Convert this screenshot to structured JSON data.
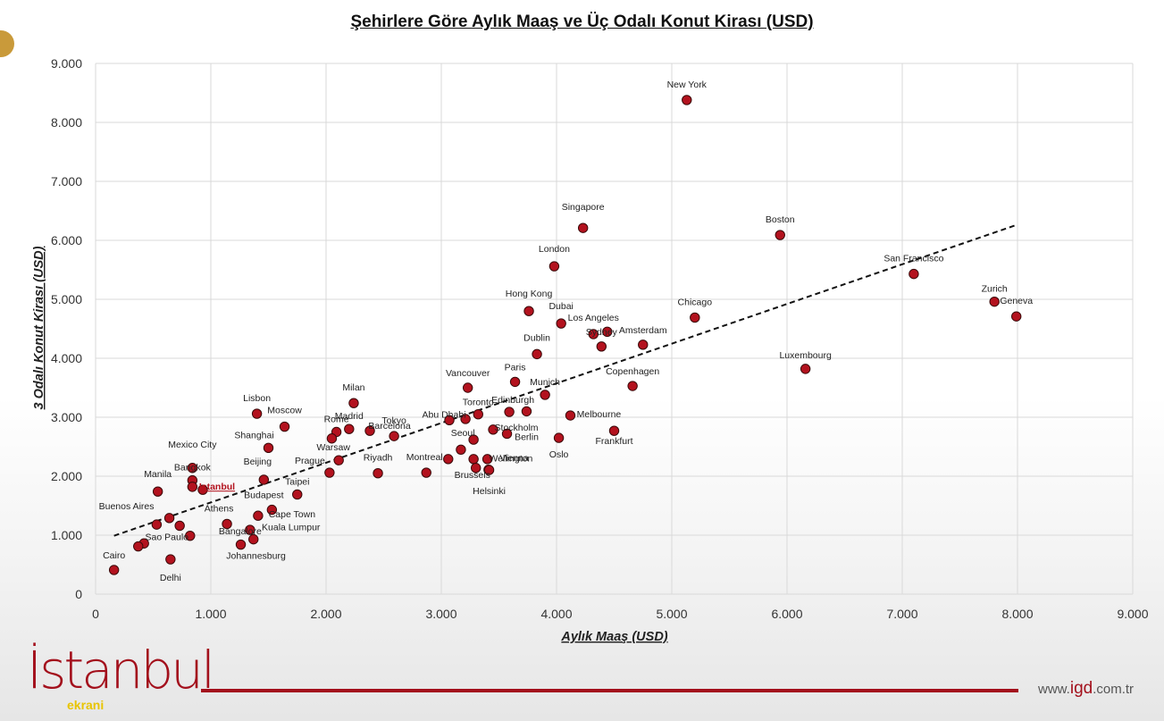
{
  "chart_data": {
    "type": "scatter",
    "title": "Şehirlere Göre Aylık Maaş ve Üç Odalı Konut Kirası (USD)",
    "xlabel": "Aylık Maaş (USD)",
    "ylabel": "3 Odalı Konut Kirası (USD)",
    "xlim": [
      0,
      9000
    ],
    "ylim": [
      0,
      9000
    ],
    "xticks": [
      0,
      1000,
      2000,
      3000,
      4000,
      5000,
      6000,
      7000,
      8000,
      9000
    ],
    "yticks": [
      0,
      1000,
      2000,
      3000,
      4000,
      5000,
      6000,
      7000,
      8000,
      9000
    ],
    "xtick_labels": [
      "0",
      "1.000",
      "2.000",
      "3.000",
      "4.000",
      "5.000",
      "6.000",
      "7.000",
      "8.000",
      "9.000"
    ],
    "ytick_labels": [
      "0",
      "1.000",
      "2.000",
      "3.000",
      "4.000",
      "5.000",
      "6.000",
      "7.000",
      "8.000",
      "9.000"
    ],
    "grid": true,
    "trendline": {
      "style": "dashed",
      "x": [
        160,
        7990
      ],
      "y": [
        990,
        6260
      ]
    },
    "marker_color": "#b3121e",
    "highlight_color": "#b3121e",
    "points": [
      {
        "x": 5130,
        "y": 8380,
        "label": "New York"
      },
      {
        "x": 4230,
        "y": 6210,
        "label": "Singapore"
      },
      {
        "x": 5940,
        "y": 6090,
        "label": "Boston"
      },
      {
        "x": 3980,
        "y": 5560,
        "label": "London"
      },
      {
        "x": 7100,
        "y": 5430,
        "label": "San Francisco"
      },
      {
        "x": 7800,
        "y": 4960,
        "label": "Zurich"
      },
      {
        "x": 7990,
        "y": 4710,
        "label": "Geneva"
      },
      {
        "x": 3760,
        "y": 4800,
        "label": "Hong Kong"
      },
      {
        "x": 5200,
        "y": 4690,
        "label": "Chicago"
      },
      {
        "x": 4040,
        "y": 4590,
        "label": "Dubai"
      },
      {
        "x": 4320,
        "y": 4410,
        "label": "Los Angeles"
      },
      {
        "x": 4440,
        "y": 4450,
        "label": ""
      },
      {
        "x": 4750,
        "y": 4230,
        "label": "Amsterdam"
      },
      {
        "x": 3830,
        "y": 4070,
        "label": "Dublin"
      },
      {
        "x": 4390,
        "y": 4200,
        "label": "Sydney"
      },
      {
        "x": 6160,
        "y": 3820,
        "label": "Luxembourg"
      },
      {
        "x": 3640,
        "y": 3600,
        "label": "Paris"
      },
      {
        "x": 4660,
        "y": 3530,
        "label": "Copenhagen"
      },
      {
        "x": 3230,
        "y": 3500,
        "label": "Vancouver"
      },
      {
        "x": 3900,
        "y": 3380,
        "label": "Munich"
      },
      {
        "x": 2240,
        "y": 3240,
        "label": "Milan"
      },
      {
        "x": 1400,
        "y": 3060,
        "label": "Lisbon"
      },
      {
        "x": 1640,
        "y": 2840,
        "label": "Moscow"
      },
      {
        "x": 2200,
        "y": 2800,
        "label": "Madrid"
      },
      {
        "x": 3320,
        "y": 3050,
        "label": "Toronto"
      },
      {
        "x": 3590,
        "y": 3090,
        "label": "Edinburgh"
      },
      {
        "x": 3740,
        "y": 3100,
        "label": ""
      },
      {
        "x": 4120,
        "y": 3030,
        "label": "Melbourne"
      },
      {
        "x": 3070,
        "y": 2950,
        "label": "Abu Dhabi"
      },
      {
        "x": 3210,
        "y": 2970,
        "label": ""
      },
      {
        "x": 2090,
        "y": 2750,
        "label": "Rome"
      },
      {
        "x": 2050,
        "y": 2640,
        "label": ""
      },
      {
        "x": 2590,
        "y": 2680,
        "label": "Tokyo"
      },
      {
        "x": 2380,
        "y": 2770,
        "label": "Barcelona"
      },
      {
        "x": 3450,
        "y": 2790,
        "label": "Stockholm"
      },
      {
        "x": 3570,
        "y": 2720,
        "label": "Berlin"
      },
      {
        "x": 4500,
        "y": 2770,
        "label": "Frankfurt"
      },
      {
        "x": 1500,
        "y": 2480,
        "label": "Shanghai"
      },
      {
        "x": 3280,
        "y": 2620,
        "label": "Seoul"
      },
      {
        "x": 4020,
        "y": 2650,
        "label": "Oslo"
      },
      {
        "x": 3170,
        "y": 2450,
        "label": ""
      },
      {
        "x": 2110,
        "y": 2270,
        "label": "Warsaw"
      },
      {
        "x": 2030,
        "y": 2060,
        "label": "Prague"
      },
      {
        "x": 2450,
        "y": 2050,
        "label": "Riyadh"
      },
      {
        "x": 2870,
        "y": 2060,
        "label": "Montreal"
      },
      {
        "x": 3060,
        "y": 2290,
        "label": ""
      },
      {
        "x": 3280,
        "y": 2290,
        "label": ""
      },
      {
        "x": 3400,
        "y": 2290,
        "label": "Vienna"
      },
      {
        "x": 3300,
        "y": 2140,
        "label": "Brussels"
      },
      {
        "x": 3410,
        "y": 2110,
        "label": "Wellington"
      },
      {
        "x": 3415,
        "y": 2105,
        "label": "Helsinki"
      },
      {
        "x": 840,
        "y": 2140,
        "label": "Mexico City"
      },
      {
        "x": 840,
        "y": 1930,
        "label": "Bangkok"
      },
      {
        "x": 840,
        "y": 1820,
        "label": ""
      },
      {
        "x": 930,
        "y": 1770,
        "label": "Istanbul",
        "highlight": true
      },
      {
        "x": 1460,
        "y": 1940,
        "label": "Beijing"
      },
      {
        "x": 540,
        "y": 1740,
        "label": "Manila"
      },
      {
        "x": 1750,
        "y": 1690,
        "label": "Taipei"
      },
      {
        "x": 1530,
        "y": 1430,
        "label": "Budapest"
      },
      {
        "x": 1410,
        "y": 1330,
        "label": "Cape Town"
      },
      {
        "x": 640,
        "y": 1290,
        "label": "Buenos Aires"
      },
      {
        "x": 530,
        "y": 1180,
        "label": ""
      },
      {
        "x": 730,
        "y": 1160,
        "label": ""
      },
      {
        "x": 1140,
        "y": 1190,
        "label": "Athens"
      },
      {
        "x": 1340,
        "y": 1090,
        "label": "Bangalore"
      },
      {
        "x": 820,
        "y": 990,
        "label": "Sao Paulo"
      },
      {
        "x": 1370,
        "y": 930,
        "label": "Kuala Lumpur"
      },
      {
        "x": 420,
        "y": 860,
        "label": ""
      },
      {
        "x": 370,
        "y": 810,
        "label": ""
      },
      {
        "x": 1260,
        "y": 840,
        "label": "Johannesburg"
      },
      {
        "x": 650,
        "y": 590,
        "label": "Delhi"
      },
      {
        "x": 160,
        "y": 410,
        "label": "Cairo"
      }
    ]
  },
  "footer": {
    "brand": "İstanbul",
    "sub": "ekrani",
    "url_prefix": "www.",
    "url_brand": "igd",
    "url_suffix": ".com.tr"
  }
}
